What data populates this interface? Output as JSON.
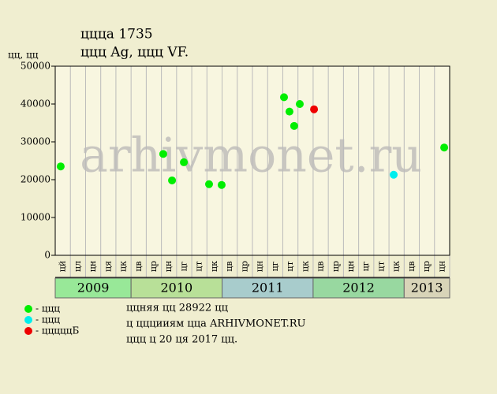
{
  "chart_data": {
    "type": "scatter",
    "title": "ццца 1735",
    "subtitle": "ццц Ag, ццц VF.",
    "y_label": "цц, цц",
    "watermark": "arhivmonet.ru",
    "years": [
      {
        "name": "2009",
        "color": "#98e898",
        "months": [
          "цй",
          "цл",
          "цн",
          "ця",
          "цк"
        ]
      },
      {
        "name": "2010",
        "color": "#b8e098",
        "months": [
          "цв",
          "цр",
          "цн",
          "цг",
          "цт",
          "цк"
        ]
      },
      {
        "name": "2011",
        "color": "#a8cccc",
        "months": [
          "цв",
          "цр",
          "цн",
          "цг",
          "цт",
          "цк"
        ]
      },
      {
        "name": "2012",
        "color": "#98d8a0",
        "months": [
          "цв",
          "цр",
          "цн",
          "цг",
          "цт",
          "цк"
        ]
      },
      {
        "name": "2013",
        "color": "#d8d4b8",
        "months": [
          "цв",
          "цр",
          "цн"
        ]
      }
    ],
    "xlim": [
      0,
      26
    ],
    "ylim": [
      0,
      50000
    ],
    "yticks": [
      0,
      10000,
      20000,
      30000,
      40000,
      50000
    ],
    "series": [
      {
        "name": "- ццц",
        "color": "#00ee00",
        "x": [
          0.36,
          7.12,
          7.7,
          8.48,
          10.14,
          10.97,
          15.08,
          15.44,
          15.75,
          16.12,
          25.64
        ],
        "values": [
          23500,
          26800,
          19800,
          24600,
          18800,
          18600,
          41800,
          38000,
          34200,
          40000,
          28500
        ]
      },
      {
        "name": "- ццц",
        "color": "#00eeee",
        "x": [
          22.31
        ],
        "values": [
          21300
        ]
      },
      {
        "name": "- цццццБ",
        "color": "#ee0000",
        "x": [
          17.06
        ],
        "values": [
          38600
        ]
      }
    ],
    "notes": [
      "ццняя цц 28922 цц",
      "ц цццииям ццa ARHIVMONET.RU",
      "ццц ц 20 ця 2017 цц."
    ]
  }
}
